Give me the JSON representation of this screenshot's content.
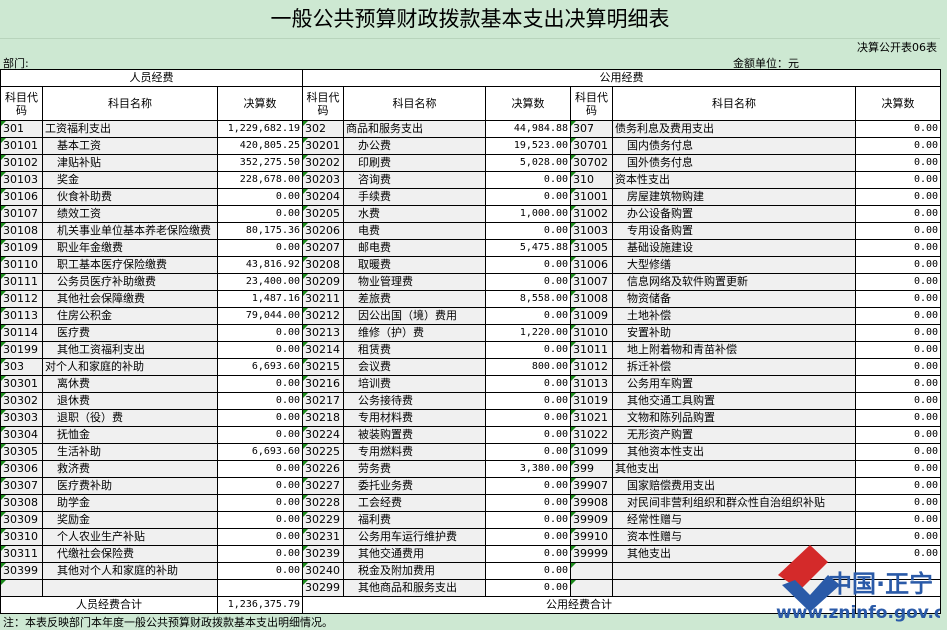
{
  "title": "一般公共预算财政拨款基本支出决算明细表",
  "form_no": "决算公开表06表",
  "dept_label": "部门:",
  "unit_label": "金额单位：元",
  "groups": {
    "personnel": "人员经费",
    "public": "公用经费"
  },
  "headers": {
    "code": "科目代码",
    "name": "科目名称",
    "amount": "决算数"
  },
  "personnel": [
    [
      "301",
      "工资福利支出",
      "1,229,682.19",
      0
    ],
    [
      "30101",
      "基本工资",
      "420,805.25",
      1
    ],
    [
      "30102",
      "津贴补贴",
      "352,275.50",
      1
    ],
    [
      "30103",
      "奖金",
      "228,678.00",
      1
    ],
    [
      "30106",
      "伙食补助费",
      "0.00",
      1
    ],
    [
      "30107",
      "绩效工资",
      "0.00",
      1
    ],
    [
      "30108",
      "机关事业单位基本养老保险缴费",
      "80,175.36",
      1
    ],
    [
      "30109",
      "职业年金缴费",
      "0.00",
      1
    ],
    [
      "30110",
      "职工基本医疗保险缴费",
      "43,816.92",
      1
    ],
    [
      "30111",
      "公务员医疗补助缴费",
      "23,400.00",
      1
    ],
    [
      "30112",
      "其他社会保障缴费",
      "1,487.16",
      1
    ],
    [
      "30113",
      "住房公积金",
      "79,044.00",
      1
    ],
    [
      "30114",
      "医疗费",
      "0.00",
      1
    ],
    [
      "30199",
      "其他工资福利支出",
      "0.00",
      1
    ],
    [
      "303",
      "对个人和家庭的补助",
      "6,693.60",
      0
    ],
    [
      "30301",
      "离休费",
      "0.00",
      1
    ],
    [
      "30302",
      "退休费",
      "0.00",
      1
    ],
    [
      "30303",
      "退职（役）费",
      "0.00",
      1
    ],
    [
      "30304",
      "抚恤金",
      "0.00",
      1
    ],
    [
      "30305",
      "生活补助",
      "6,693.60",
      1
    ],
    [
      "30306",
      "救济费",
      "0.00",
      1
    ],
    [
      "30307",
      "医疗费补助",
      "0.00",
      1
    ],
    [
      "30308",
      "助学金",
      "0.00",
      1
    ],
    [
      "30309",
      "奖励金",
      "0.00",
      1
    ],
    [
      "30310",
      "个人农业生产补贴",
      "0.00",
      1
    ],
    [
      "30311",
      "代缴社会保险费",
      "0.00",
      1
    ],
    [
      "30399",
      "其他对个人和家庭的补助",
      "0.00",
      1
    ],
    [
      "",
      "",
      "",
      1
    ],
    [
      "",
      "",
      "",
      1
    ]
  ],
  "public_a": [
    [
      "302",
      "商品和服务支出",
      "44,984.88",
      0
    ],
    [
      "30201",
      "办公费",
      "19,523.00",
      1
    ],
    [
      "30202",
      "印刷费",
      "5,028.00",
      1
    ],
    [
      "30203",
      "咨询费",
      "0.00",
      1
    ],
    [
      "30204",
      "手续费",
      "0.00",
      1
    ],
    [
      "30205",
      "水费",
      "1,000.00",
      1
    ],
    [
      "30206",
      "电费",
      "0.00",
      1
    ],
    [
      "30207",
      "邮电费",
      "5,475.88",
      1
    ],
    [
      "30208",
      "取暖费",
      "0.00",
      1
    ],
    [
      "30209",
      "物业管理费",
      "0.00",
      1
    ],
    [
      "30211",
      "差旅费",
      "8,558.00",
      1
    ],
    [
      "30212",
      "因公出国（境）费用",
      "0.00",
      1
    ],
    [
      "30213",
      "维修（护）费",
      "1,220.00",
      1
    ],
    [
      "30214",
      "租赁费",
      "0.00",
      1
    ],
    [
      "30215",
      "会议费",
      "800.00",
      1
    ],
    [
      "30216",
      "培训费",
      "0.00",
      1
    ],
    [
      "30217",
      "公务接待费",
      "0.00",
      1
    ],
    [
      "30218",
      "专用材料费",
      "0.00",
      1
    ],
    [
      "30224",
      "被装购置费",
      "0.00",
      1
    ],
    [
      "30225",
      "专用燃料费",
      "0.00",
      1
    ],
    [
      "30226",
      "劳务费",
      "3,380.00",
      1
    ],
    [
      "30227",
      "委托业务费",
      "0.00",
      1
    ],
    [
      "30228",
      "工会经费",
      "0.00",
      1
    ],
    [
      "30229",
      "福利费",
      "0.00",
      1
    ],
    [
      "30231",
      "公务用车运行维护费",
      "0.00",
      1
    ],
    [
      "30239",
      "其他交通费用",
      "0.00",
      1
    ],
    [
      "30240",
      "税金及附加费用",
      "0.00",
      1
    ],
    [
      "30299",
      "其他商品和服务支出",
      "0.00",
      1
    ]
  ],
  "public_b": [
    [
      "307",
      "债务利息及费用支出",
      "0.00",
      0
    ],
    [
      "30701",
      "国内债务付息",
      "0.00",
      1
    ],
    [
      "30702",
      "国外债务付息",
      "0.00",
      1
    ],
    [
      "310",
      "资本性支出",
      "0.00",
      0
    ],
    [
      "31001",
      "房屋建筑物购建",
      "0.00",
      1
    ],
    [
      "31002",
      "办公设备购置",
      "0.00",
      1
    ],
    [
      "31003",
      "专用设备购置",
      "0.00",
      1
    ],
    [
      "31005",
      "基础设施建设",
      "0.00",
      1
    ],
    [
      "31006",
      "大型修缮",
      "0.00",
      1
    ],
    [
      "31007",
      "信息网络及软件购置更新",
      "0.00",
      1
    ],
    [
      "31008",
      "物资储备",
      "0.00",
      1
    ],
    [
      "31009",
      "土地补偿",
      "0.00",
      1
    ],
    [
      "31010",
      "安置补助",
      "0.00",
      1
    ],
    [
      "31011",
      "地上附着物和青苗补偿",
      "0.00",
      1
    ],
    [
      "31012",
      "拆迁补偿",
      "0.00",
      1
    ],
    [
      "31013",
      "公务用车购置",
      "0.00",
      1
    ],
    [
      "31019",
      "其他交通工具购置",
      "0.00",
      1
    ],
    [
      "31021",
      "文物和陈列品购置",
      "0.00",
      1
    ],
    [
      "31022",
      "无形资产购置",
      "0.00",
      1
    ],
    [
      "31099",
      "其他资本性支出",
      "0.00",
      1
    ],
    [
      "399",
      "其他支出",
      "0.00",
      0
    ],
    [
      "39907",
      "国家赔偿费用支出",
      "0.00",
      1
    ],
    [
      "39908",
      "对民间非营利组织和群众性自治组织补贴",
      "0.00",
      1
    ],
    [
      "39909",
      "经常性赠与",
      "0.00",
      1
    ],
    [
      "39910",
      "资本性赠与",
      "0.00",
      1
    ],
    [
      "39999",
      "其他支出",
      "0.00",
      1
    ],
    [
      "",
      "",
      "",
      1
    ],
    [
      "",
      "",
      "",
      1
    ]
  ],
  "totals": {
    "personnel_label": "人员经费合计",
    "personnel_value": "1,236,375.79",
    "public_label": "公用经费合计"
  },
  "note": "注：本表反映部门本年度一般公共预算财政拨款基本支出明细情况。",
  "watermark": {
    "text": "中国·正宁",
    "url": "www.zninfo.gov.cn"
  }
}
